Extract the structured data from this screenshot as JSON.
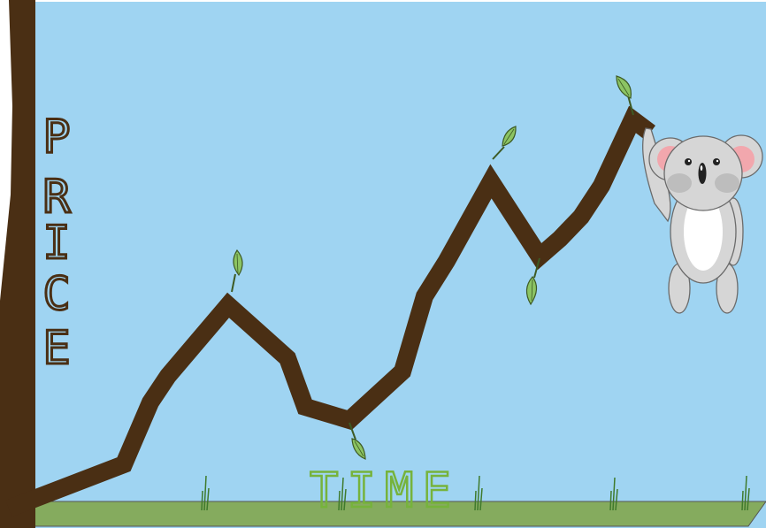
{
  "scene": {
    "y_axis_label": "PRICE",
    "x_axis_label": "TIME",
    "colors": {
      "sky": "#9fd4f2",
      "ground": "#85ab5e",
      "branch": "#4a2f14",
      "leaf": "#8cc463",
      "leaf_outline": "#3d5a24",
      "grass": "#3f7a2c",
      "koala_body": "#d6d6d6",
      "koala_outline": "#6b6b6b",
      "koala_ear": "#f2a7ad",
      "koala_belly": "#ffffff",
      "koala_nose": "#222222",
      "label_price": "#4a2f14",
      "label_time": "#76b33c"
    },
    "icons": [
      "tree-trunk-icon",
      "branch-line-icon",
      "leaf-icon",
      "grass-tuft-icon",
      "koala-icon"
    ]
  }
}
